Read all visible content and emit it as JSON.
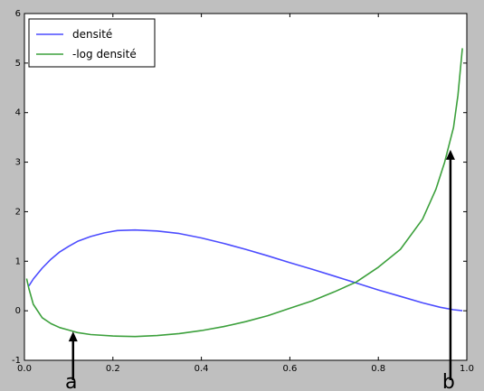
{
  "chart_data": {
    "type": "line",
    "title": "",
    "xlabel": "",
    "ylabel": "",
    "xlim": [
      0.0,
      1.0
    ],
    "ylim": [
      -1,
      6
    ],
    "xticks": [
      "0.0",
      "0.2",
      "0.4",
      "0.6",
      "0.8",
      "1.0"
    ],
    "yticks": [
      "-1",
      "0",
      "1",
      "2",
      "3",
      "4",
      "5",
      "6"
    ],
    "grid": false,
    "legend_position": "top-left",
    "series": [
      {
        "name": "densité",
        "color": "#4c4cff",
        "x": [
          0.01,
          0.02,
          0.04,
          0.06,
          0.08,
          0.1,
          0.12,
          0.15,
          0.18,
          0.21,
          0.25,
          0.3,
          0.35,
          0.4,
          0.45,
          0.5,
          0.55,
          0.6,
          0.65,
          0.7,
          0.75,
          0.8,
          0.85,
          0.9,
          0.94,
          0.97,
          0.99
        ],
        "y": [
          0.5,
          0.64,
          0.86,
          1.04,
          1.19,
          1.3,
          1.4,
          1.5,
          1.57,
          1.62,
          1.63,
          1.61,
          1.56,
          1.47,
          1.36,
          1.24,
          1.11,
          0.97,
          0.84,
          0.7,
          0.56,
          0.42,
          0.29,
          0.16,
          0.07,
          0.02,
          0.0
        ]
      },
      {
        "name": "-log densité",
        "color": "#3ca03c",
        "x": [
          0.005,
          0.01,
          0.02,
          0.04,
          0.06,
          0.08,
          0.1,
          0.12,
          0.15,
          0.2,
          0.25,
          0.3,
          0.35,
          0.4,
          0.45,
          0.5,
          0.55,
          0.6,
          0.65,
          0.7,
          0.75,
          0.8,
          0.85,
          0.9,
          0.93,
          0.95,
          0.97,
          0.98,
          0.99
        ],
        "y": [
          0.65,
          0.45,
          0.13,
          -0.14,
          -0.26,
          -0.34,
          -0.39,
          -0.44,
          -0.48,
          -0.51,
          -0.52,
          -0.5,
          -0.46,
          -0.4,
          -0.32,
          -0.22,
          -0.1,
          0.05,
          0.2,
          0.38,
          0.58,
          0.88,
          1.24,
          1.85,
          2.45,
          3.0,
          3.7,
          4.35,
          5.3
        ]
      }
    ],
    "annotations": [
      {
        "label": "a",
        "x": 0.11,
        "y_from": -1,
        "y_to": -0.42
      },
      {
        "label": "b",
        "x": 0.963,
        "y_from": -1,
        "y_to": 3.25
      }
    ]
  }
}
